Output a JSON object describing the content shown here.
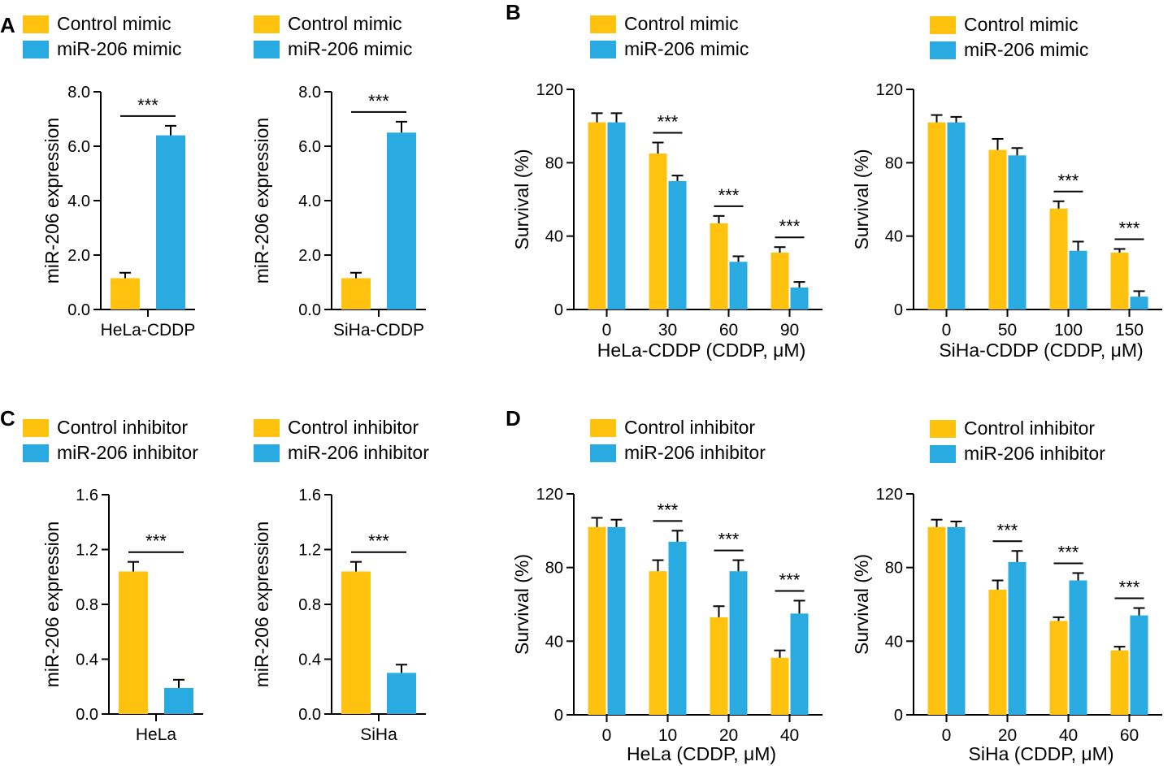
{
  "colors": {
    "control": "#FFC20E",
    "treated": "#29ABE2",
    "axis": "#000000"
  },
  "panels": [
    {
      "letter": "A"
    },
    {
      "letter": "B"
    },
    {
      "letter": "C"
    },
    {
      "letter": "D"
    }
  ],
  "chart_data": [
    {
      "id": "A1",
      "type": "bar",
      "panel": "A",
      "legend": [
        "Control mimic",
        "miR-206 mimic"
      ],
      "ylabel": "miR-206 expression",
      "xlabel": "",
      "ylim": [
        0,
        8.0
      ],
      "yticks": [
        "0.0",
        "2.0",
        "4.0",
        "6.0",
        "8.0"
      ],
      "categories": [
        "HeLa-CDDP"
      ],
      "series": [
        {
          "name": "Control mimic",
          "values": [
            1.15
          ],
          "errors": [
            0.2
          ]
        },
        {
          "name": "miR-206 mimic",
          "values": [
            6.4
          ],
          "errors": [
            0.35
          ]
        }
      ],
      "significance": [
        "***"
      ]
    },
    {
      "id": "A2",
      "type": "bar",
      "panel": "A",
      "legend": [
        "Control mimic",
        "miR-206 mimic"
      ],
      "ylabel": "miR-206 expression",
      "xlabel": "",
      "ylim": [
        0,
        8.0
      ],
      "yticks": [
        "0.0",
        "2.0",
        "4.0",
        "6.0",
        "8.0"
      ],
      "categories": [
        "SiHa-CDDP"
      ],
      "series": [
        {
          "name": "Control mimic",
          "values": [
            1.15
          ],
          "errors": [
            0.2
          ]
        },
        {
          "name": "miR-206 mimic",
          "values": [
            6.5
          ],
          "errors": [
            0.4
          ]
        }
      ],
      "significance": [
        "***"
      ]
    },
    {
      "id": "B1",
      "type": "bar",
      "panel": "B",
      "legend": [
        "Control mimic",
        "miR-206 mimic"
      ],
      "ylabel": "Survival (%)",
      "xlabel": "HeLa-CDDP (CDDP, μM)",
      "ylim": [
        0,
        120
      ],
      "yticks": [
        "0",
        "40",
        "80",
        "120"
      ],
      "categories": [
        "0",
        "30",
        "60",
        "90"
      ],
      "series": [
        {
          "name": "Control mimic",
          "values": [
            102,
            85,
            47,
            31
          ],
          "errors": [
            5,
            6,
            4,
            3
          ]
        },
        {
          "name": "miR-206 mimic",
          "values": [
            102,
            70,
            26,
            12
          ],
          "errors": [
            5,
            3,
            3,
            3
          ]
        }
      ],
      "significance": [
        "",
        "***",
        "***",
        "***"
      ]
    },
    {
      "id": "B2",
      "type": "bar",
      "panel": "B",
      "legend": [
        "Control mimic",
        "miR-206 mimic"
      ],
      "ylabel": "Survival (%)",
      "xlabel": "SiHa-CDDP (CDDP, μM)",
      "ylim": [
        0,
        120
      ],
      "yticks": [
        "0",
        "40",
        "80",
        "120"
      ],
      "categories": [
        "0",
        "50",
        "100",
        "150"
      ],
      "series": [
        {
          "name": "Control mimic",
          "values": [
            102,
            87,
            55,
            31
          ],
          "errors": [
            4,
            6,
            4,
            2
          ]
        },
        {
          "name": "miR-206 mimic",
          "values": [
            102,
            84,
            32,
            7
          ],
          "errors": [
            3,
            4,
            5,
            3
          ]
        }
      ],
      "significance": [
        "",
        "",
        "***",
        "***"
      ]
    },
    {
      "id": "C1",
      "type": "bar",
      "panel": "C",
      "legend": [
        "Control inhibitor",
        "miR-206 inhibitor"
      ],
      "ylabel": "miR-206 expression",
      "xlabel": "",
      "ylim": [
        0,
        1.6
      ],
      "yticks": [
        "0.0",
        "0.4",
        "0.8",
        "1.2",
        "1.6"
      ],
      "categories": [
        "HeLa"
      ],
      "series": [
        {
          "name": "Control inhibitor",
          "values": [
            1.04
          ],
          "errors": [
            0.07
          ]
        },
        {
          "name": "miR-206 inhibitor",
          "values": [
            0.19
          ],
          "errors": [
            0.06
          ]
        }
      ],
      "significance": [
        "***"
      ]
    },
    {
      "id": "C2",
      "type": "bar",
      "panel": "C",
      "legend": [
        "Control inhibitor",
        "miR-206 inhibitor"
      ],
      "ylabel": "miR-206 expression",
      "xlabel": "",
      "ylim": [
        0,
        1.6
      ],
      "yticks": [
        "0.0",
        "0.4",
        "0.8",
        "1.2",
        "1.6"
      ],
      "categories": [
        "SiHa"
      ],
      "series": [
        {
          "name": "Control inhibitor",
          "values": [
            1.04
          ],
          "errors": [
            0.07
          ]
        },
        {
          "name": "miR-206 inhibitor",
          "values": [
            0.3
          ],
          "errors": [
            0.06
          ]
        }
      ],
      "significance": [
        "***"
      ]
    },
    {
      "id": "D1",
      "type": "bar",
      "panel": "D",
      "legend": [
        "Control inhibitor",
        "miR-206 inhibitor"
      ],
      "ylabel": "Survival (%)",
      "xlabel": "HeLa (CDDP, μM)",
      "ylim": [
        0,
        120
      ],
      "yticks": [
        "0",
        "40",
        "80",
        "120"
      ],
      "categories": [
        "0",
        "10",
        "20",
        "40"
      ],
      "series": [
        {
          "name": "Control inhibitor",
          "values": [
            102,
            78,
            53,
            31
          ],
          "errors": [
            5,
            6,
            6,
            4
          ]
        },
        {
          "name": "miR-206 inhibitor",
          "values": [
            102,
            94,
            78,
            55
          ],
          "errors": [
            4,
            6,
            6,
            7
          ]
        }
      ],
      "significance": [
        "",
        "***",
        "***",
        "***"
      ]
    },
    {
      "id": "D2",
      "type": "bar",
      "panel": "D",
      "legend": [
        "Control inhibitor",
        "miR-206 inhibitor"
      ],
      "ylabel": "Survival (%)",
      "xlabel": "SiHa (CDDP, μM)",
      "ylim": [
        0,
        120
      ],
      "yticks": [
        "0",
        "40",
        "80",
        "120"
      ],
      "categories": [
        "0",
        "20",
        "40",
        "60"
      ],
      "series": [
        {
          "name": "Control inhibitor",
          "values": [
            102,
            68,
            51,
            35
          ],
          "errors": [
            4,
            5,
            2,
            2
          ]
        },
        {
          "name": "miR-206 inhibitor",
          "values": [
            102,
            83,
            73,
            54
          ],
          "errors": [
            3,
            6,
            4,
            4
          ]
        }
      ],
      "significance": [
        "",
        "***",
        "***",
        "***"
      ]
    }
  ]
}
